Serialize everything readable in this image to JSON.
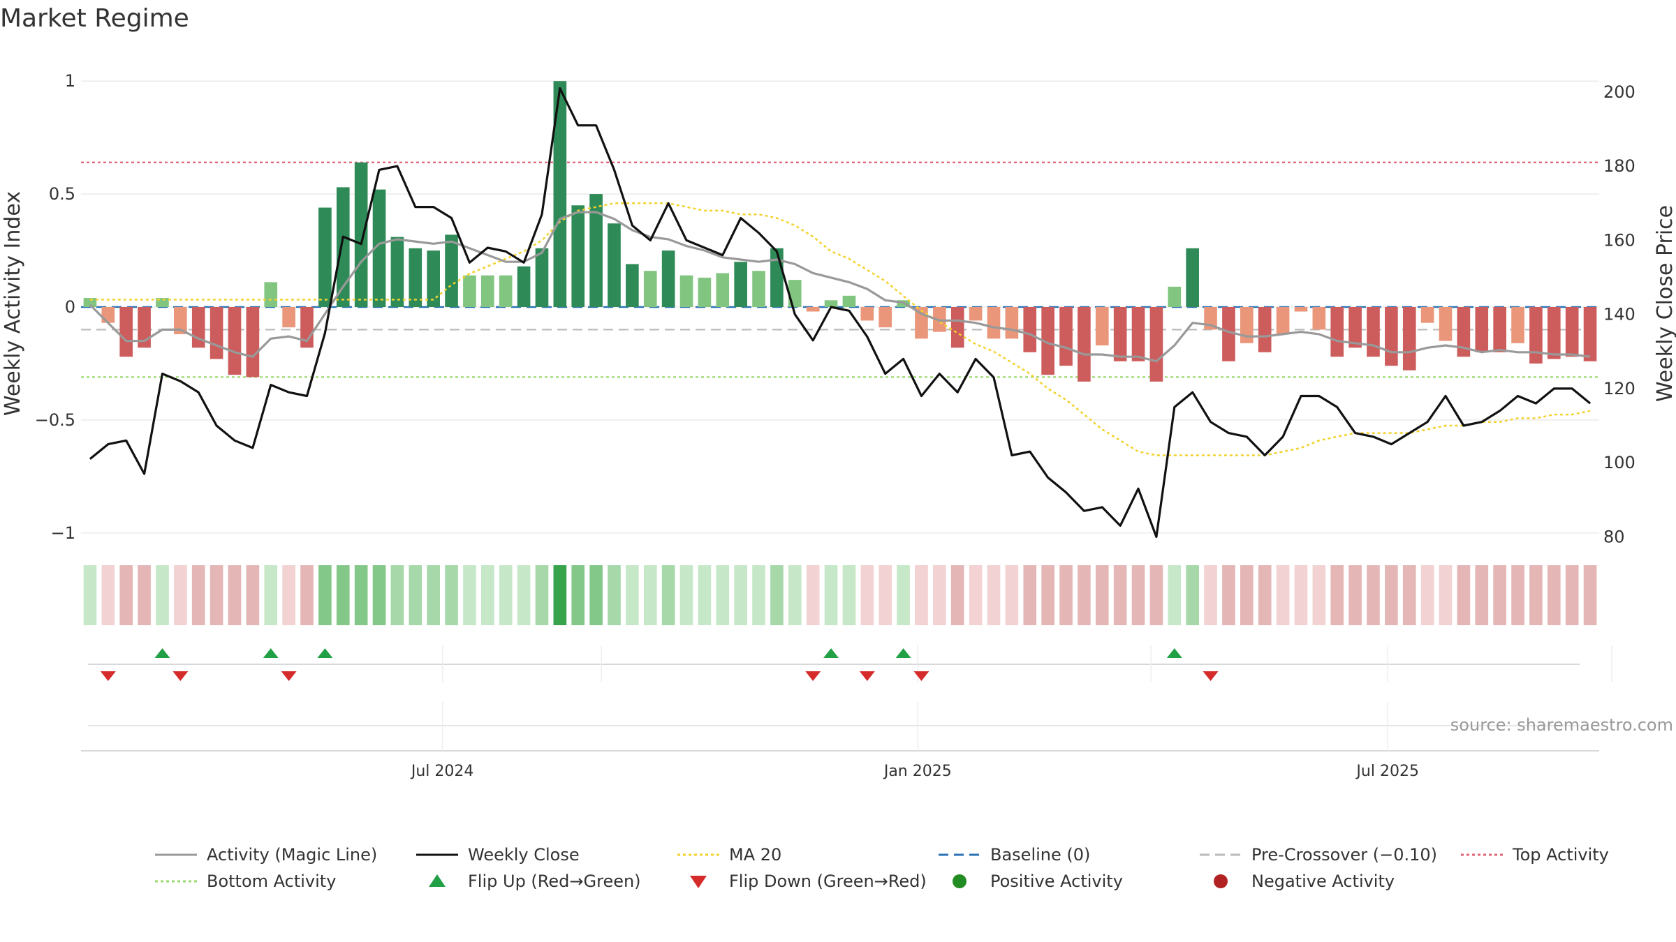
{
  "title": "Market Regime",
  "source": "source: sharemaestro.com",
  "colors": {
    "dark_green": "#2e8b57",
    "mid_green": "#56b06b",
    "light_green": "#82c580",
    "dark_red": "#cd5c5c",
    "light_red": "#e9967a",
    "magic": "#999999",
    "close": "#111111",
    "ma": "#f2d22c",
    "baseline": "#2b73b5",
    "pre": "#bbbbbb",
    "top": "#e06377",
    "bottom": "#9bd86e",
    "flip_up": "#22a045",
    "flip_down": "#d62b2b",
    "pos": "#228b22",
    "neg": "#b22222"
  },
  "chart_data": {
    "type": "bar",
    "title": "Market Regime",
    "ylabel": "Weekly Activity Index",
    "y2label": "Weekly Close Price",
    "ylim": [
      -1.05,
      1.05
    ],
    "y2lim": [
      78,
      206
    ],
    "yticks": [
      1,
      0.5,
      0,
      -0.5,
      -1
    ],
    "ytick_labels": [
      "1",
      "0.5",
      "0",
      "−0.5",
      "−1"
    ],
    "y2ticks": [
      200,
      180,
      160,
      140,
      120,
      100,
      80
    ],
    "x_date_labels": [
      "Jul 2024",
      "Jan 2025",
      "Jul 2025"
    ],
    "x_label_weeks": [
      19.5,
      45.8,
      71.8
    ],
    "activity": [
      0.04,
      -0.07,
      -0.22,
      -0.18,
      0.04,
      -0.12,
      -0.18,
      -0.23,
      -0.3,
      -0.31,
      0.11,
      -0.09,
      -0.18,
      0.44,
      0.53,
      0.64,
      0.52,
      0.31,
      0.26,
      0.25,
      0.32,
      0.14,
      0.14,
      0.14,
      0.18,
      0.26,
      1.0,
      0.45,
      0.5,
      0.37,
      0.19,
      0.16,
      0.25,
      0.14,
      0.13,
      0.15,
      0.2,
      0.16,
      0.26,
      0.12,
      -0.02,
      0.03,
      0.05,
      -0.06,
      -0.09,
      0.03,
      -0.14,
      -0.11,
      -0.18,
      -0.06,
      -0.14,
      -0.14,
      -0.2,
      -0.3,
      -0.26,
      -0.33,
      -0.17,
      -0.24,
      -0.24,
      -0.33,
      0.09,
      0.26,
      -0.1,
      -0.24,
      -0.16,
      -0.2,
      -0.12,
      -0.02,
      -0.1,
      -0.22,
      -0.18,
      -0.22,
      -0.26,
      -0.28,
      -0.07,
      -0.15,
      -0.22,
      -0.2,
      -0.2,
      -0.16,
      -0.25,
      -0.23,
      -0.22,
      -0.24
    ],
    "magic_line": [
      0.01,
      -0.07,
      -0.15,
      -0.15,
      -0.1,
      -0.1,
      -0.14,
      -0.17,
      -0.2,
      -0.22,
      -0.14,
      -0.13,
      -0.15,
      -0.03,
      0.09,
      0.2,
      0.28,
      0.3,
      0.29,
      0.28,
      0.29,
      0.26,
      0.23,
      0.2,
      0.2,
      0.24,
      0.39,
      0.42,
      0.42,
      0.39,
      0.34,
      0.31,
      0.3,
      0.27,
      0.25,
      0.22,
      0.21,
      0.2,
      0.21,
      0.19,
      0.15,
      0.13,
      0.11,
      0.08,
      0.03,
      0.02,
      -0.03,
      -0.06,
      -0.06,
      -0.07,
      -0.09,
      -0.1,
      -0.12,
      -0.16,
      -0.18,
      -0.21,
      -0.21,
      -0.22,
      -0.22,
      -0.24,
      -0.17,
      -0.07,
      -0.08,
      -0.11,
      -0.13,
      -0.13,
      -0.12,
      -0.11,
      -0.12,
      -0.15,
      -0.16,
      -0.17,
      -0.2,
      -0.2,
      -0.18,
      -0.17,
      -0.18,
      -0.2,
      -0.19,
      -0.2,
      -0.2,
      -0.21,
      -0.21,
      -0.22
    ],
    "weekly_close": [
      101,
      105,
      106,
      97,
      124,
      122,
      119,
      110,
      106,
      104,
      121,
      119,
      118,
      135,
      161,
      159,
      179,
      180,
      169,
      169,
      166,
      154,
      158,
      157,
      154,
      167,
      201,
      191,
      191,
      179,
      164,
      160,
      170,
      160,
      158,
      156,
      166,
      162,
      157,
      140,
      133,
      142,
      141,
      134,
      124,
      128,
      118,
      124,
      119,
      128,
      123,
      102,
      103,
      96,
      92,
      87,
      88,
      83,
      93,
      80,
      115,
      119,
      111,
      108,
      107,
      102,
      107,
      118,
      118,
      115,
      108,
      107,
      105,
      108,
      111,
      118,
      110,
      111,
      114,
      118,
      116,
      120,
      120,
      116
    ],
    "ma20": [
      144,
      144,
      144,
      144,
      144,
      144,
      144,
      144,
      144,
      144,
      144,
      144,
      144,
      144,
      144,
      144,
      144,
      144,
      144,
      144,
      148,
      151,
      153,
      155,
      157,
      160,
      165,
      168,
      169,
      170,
      170,
      170,
      170,
      169,
      168,
      168,
      167,
      167,
      166,
      164,
      161,
      157,
      155,
      152,
      149,
      145,
      141,
      138,
      135,
      132,
      130,
      127,
      124,
      120,
      117,
      113,
      109,
      106,
      103,
      102,
      102,
      102,
      102,
      102,
      102,
      102,
      103,
      104,
      106,
      107,
      108,
      108,
      108,
      108,
      109,
      110,
      110,
      111,
      111,
      112,
      112,
      113,
      113,
      114
    ],
    "flip_up_weeks": [
      4,
      10,
      13,
      41,
      45,
      60
    ],
    "flip_down_weeks": [
      1,
      5,
      11,
      40,
      43,
      46,
      62
    ],
    "baseline": 0,
    "pre_crossover": -0.1,
    "top_activity": 0.64,
    "bottom_activity": -0.31,
    "legend_position": "bottom"
  },
  "legend": [
    {
      "label": "Activity (Magic Line)",
      "kind": "line",
      "color": "#999999",
      "dash": ""
    },
    {
      "label": "Weekly Close",
      "kind": "line",
      "color": "#111111",
      "dash": ""
    },
    {
      "label": "MA 20",
      "kind": "line",
      "color": "#f2d22c",
      "dash": "4 4"
    },
    {
      "label": "Baseline (0)",
      "kind": "line",
      "color": "#2b73b5",
      "dash": "14 8"
    },
    {
      "label": "Pre-Crossover (−0.10)",
      "kind": "line",
      "color": "#bbbbbb",
      "dash": "14 8"
    },
    {
      "label": "Top Activity",
      "kind": "line",
      "color": "#e06377",
      "dash": "4 4"
    },
    {
      "label": "Bottom Activity",
      "kind": "line",
      "color": "#9bd86e",
      "dash": "4 4"
    },
    {
      "label": "Flip Up (Red→Green)",
      "kind": "tri-up",
      "color": "#22a045",
      "dash": ""
    },
    {
      "label": "Flip Down (Green→Red)",
      "kind": "tri-down",
      "color": "#d62b2b",
      "dash": ""
    },
    {
      "label": "Positive Activity",
      "kind": "dot",
      "color": "#228b22",
      "dash": ""
    },
    {
      "label": "Negative Activity",
      "kind": "dot",
      "color": "#b22222",
      "dash": ""
    }
  ]
}
